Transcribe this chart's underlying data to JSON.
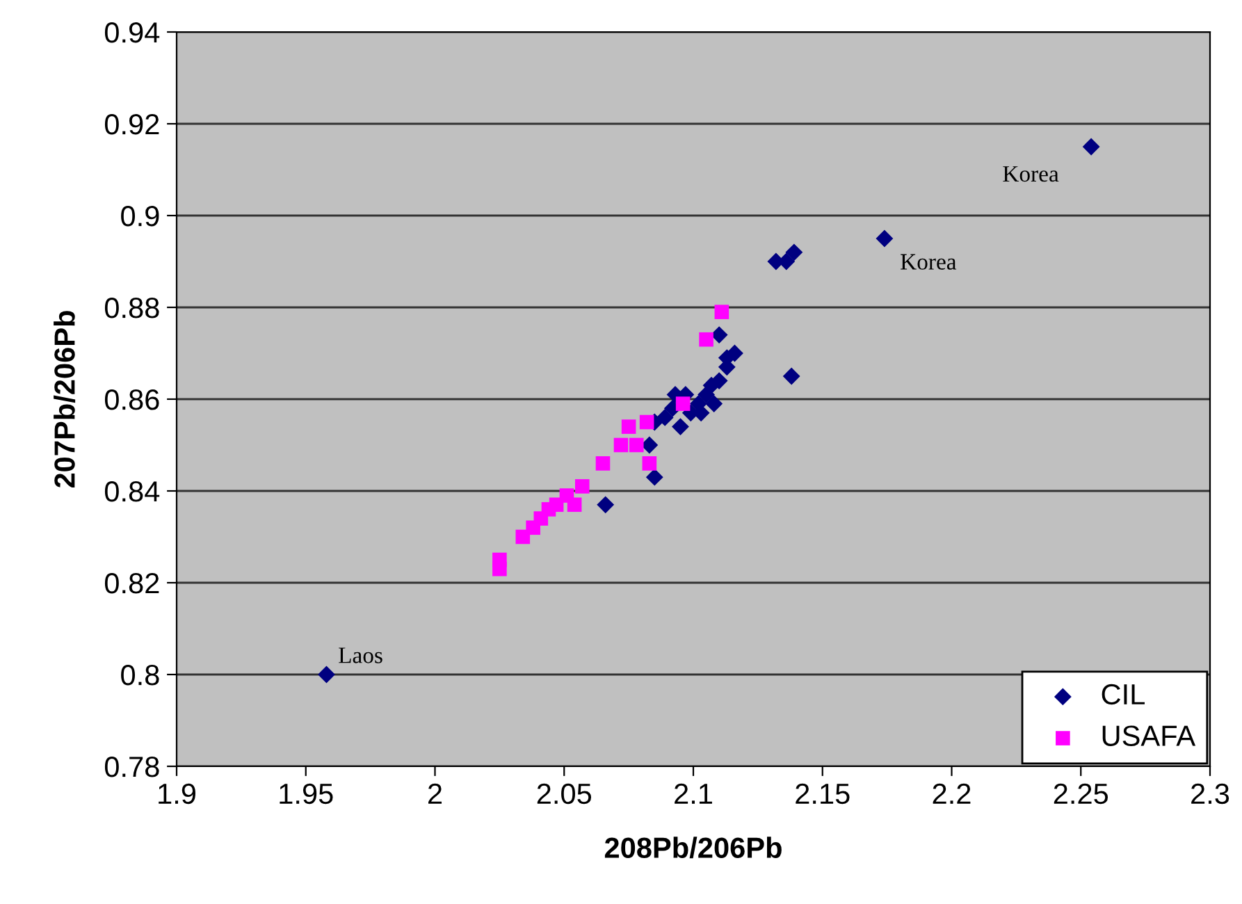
{
  "chart_data": {
    "type": "scatter",
    "xlabel": "208Pb/206Pb",
    "ylabel": "207Pb/206Pb",
    "xlim": [
      1.9,
      2.3
    ],
    "xticks": [
      {
        "value": 1.9,
        "label": "1.9"
      },
      {
        "value": 1.95,
        "label": "1.95"
      },
      {
        "value": 2.0,
        "label": "2"
      },
      {
        "value": 2.05,
        "label": "2.05"
      },
      {
        "value": 2.1,
        "label": "2.1"
      },
      {
        "value": 2.15,
        "label": "2.15"
      },
      {
        "value": 2.2,
        "label": "2.2"
      },
      {
        "value": 2.25,
        "label": "2.25"
      },
      {
        "value": 2.3,
        "label": "2.3"
      }
    ],
    "ylim": [
      0.78,
      0.94
    ],
    "yticks": [
      0.78,
      0.8,
      0.82,
      0.84,
      0.86,
      0.88,
      {
        "value": 0.9,
        "label": "0.9"
      },
      0.92,
      0.94
    ],
    "grid": "y",
    "legend": "bottom right",
    "series": [
      {
        "name": "CIL",
        "color": "#000080",
        "marker": "diamond",
        "x": [
          1.958,
          2.066,
          2.085,
          2.083,
          2.085,
          2.089,
          2.092,
          2.093,
          2.097,
          2.095,
          2.099,
          2.102,
          2.105,
          2.103,
          2.108,
          2.107,
          2.11,
          2.113,
          2.113,
          2.116,
          2.11,
          2.132,
          2.136,
          2.139,
          2.138,
          2.174,
          2.254
        ],
        "values": [
          0.8,
          0.837,
          0.843,
          0.85,
          0.855,
          0.856,
          0.858,
          0.861,
          0.861,
          0.854,
          0.857,
          0.859,
          0.861,
          0.857,
          0.859,
          0.863,
          0.864,
          0.867,
          0.869,
          0.87,
          0.874,
          0.89,
          0.89,
          0.892,
          0.865,
          0.895,
          0.915
        ]
      },
      {
        "name": "USAFA",
        "color": "#ff00ff",
        "marker": "square",
        "x": [
          2.025,
          2.025,
          2.034,
          2.038,
          2.041,
          2.044,
          2.047,
          2.051,
          2.054,
          2.057,
          2.065,
          2.072,
          2.075,
          2.078,
          2.082,
          2.083,
          2.096,
          2.105,
          2.111
        ],
        "values": [
          0.825,
          0.823,
          0.83,
          0.832,
          0.834,
          0.836,
          0.837,
          0.839,
          0.837,
          0.841,
          0.846,
          0.85,
          0.854,
          0.85,
          0.855,
          0.846,
          0.859,
          0.873,
          0.879
        ]
      }
    ],
    "annotations": [
      {
        "text": "Korea",
        "x": 2.254,
        "y": 0.915
      },
      {
        "text": "Korea",
        "x": 2.174,
        "y": 0.895
      },
      {
        "text": "Laos",
        "x": 1.958,
        "y": 0.8
      }
    ]
  }
}
